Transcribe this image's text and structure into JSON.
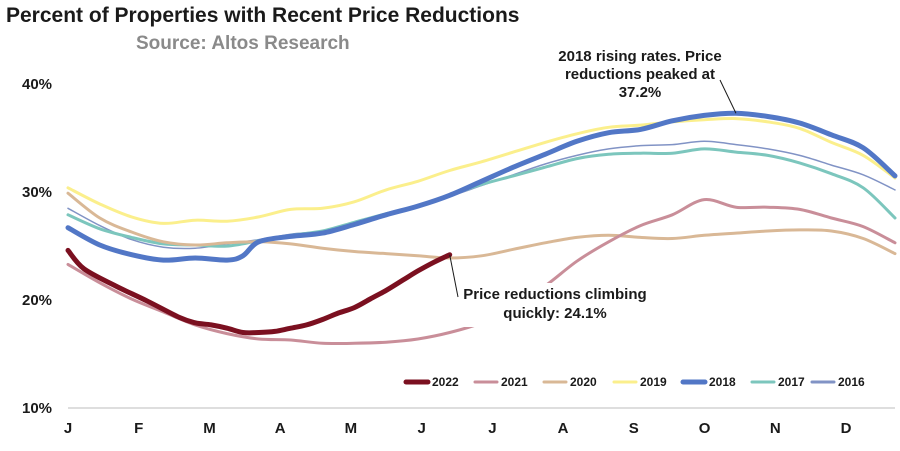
{
  "chart_data": {
    "type": "line",
    "title": "Percent of Properties with Recent Price Reductions",
    "subtitle": "Source: Altos Research",
    "xlabel": "",
    "ylabel": "",
    "ylim": [
      10,
      40
    ],
    "yticks": [
      "40%",
      "30%",
      "20%",
      "10%"
    ],
    "ytick_values": [
      40,
      30,
      20,
      10
    ],
    "categories": [
      "J",
      "F",
      "M",
      "A",
      "M",
      "J",
      "J",
      "A",
      "S",
      "O",
      "N",
      "D"
    ],
    "x_range": [
      1,
      53
    ],
    "legend_position": "bottom-right",
    "series": [
      {
        "name": "2022",
        "color": "#7b1020",
        "width": 5,
        "x": [
          1,
          2,
          4,
          6,
          8,
          9,
          10,
          11,
          12,
          13,
          14,
          15,
          16,
          17,
          18,
          19,
          20,
          21,
          22,
          23,
          24,
          25
        ],
        "y": [
          24.5,
          22.8,
          21.2,
          19.8,
          18.3,
          17.8,
          17.6,
          17.3,
          16.9,
          16.9,
          17.0,
          17.3,
          17.6,
          18.1,
          18.7,
          19.2,
          20.0,
          20.8,
          21.7,
          22.6,
          23.4,
          24.1
        ]
      },
      {
        "name": "2021",
        "color": "#c98e99",
        "width": 3,
        "x": [
          1,
          3,
          5,
          7,
          9,
          11,
          13,
          15,
          17,
          19,
          21,
          23,
          25,
          27,
          29,
          31,
          33,
          35,
          37,
          39,
          41,
          43,
          45,
          47,
          49,
          51,
          53
        ],
        "y": [
          23.2,
          21.5,
          20.0,
          18.8,
          17.6,
          16.8,
          16.3,
          16.2,
          15.9,
          15.9,
          16.0,
          16.3,
          16.9,
          17.8,
          19.3,
          21.2,
          23.5,
          25.3,
          26.8,
          27.8,
          29.2,
          28.5,
          28.5,
          28.3,
          27.5,
          26.7,
          25.2
        ]
      },
      {
        "name": "2020",
        "color": "#d9b896",
        "width": 3,
        "x": [
          1,
          3,
          5,
          7,
          9,
          11,
          13,
          15,
          17,
          19,
          21,
          23,
          25,
          27,
          29,
          31,
          33,
          35,
          37,
          39,
          41,
          43,
          45,
          47,
          49,
          51,
          53
        ],
        "y": [
          29.8,
          27.5,
          26.2,
          25.3,
          25.0,
          25.2,
          25.3,
          25.1,
          24.7,
          24.4,
          24.2,
          24.0,
          23.8,
          24.0,
          24.6,
          25.2,
          25.7,
          25.9,
          25.7,
          25.6,
          25.9,
          26.1,
          26.3,
          26.4,
          26.3,
          25.6,
          24.2
        ]
      },
      {
        "name": "2019",
        "color": "#fbef8c",
        "width": 3,
        "x": [
          1,
          3,
          5,
          7,
          9,
          11,
          13,
          15,
          17,
          19,
          21,
          23,
          25,
          27,
          29,
          31,
          33,
          35,
          37,
          39,
          41,
          43,
          45,
          47,
          49,
          51,
          53
        ],
        "y": [
          30.3,
          28.8,
          27.6,
          27.0,
          27.3,
          27.2,
          27.6,
          28.3,
          28.4,
          29.0,
          30.1,
          30.9,
          31.9,
          32.7,
          33.6,
          34.5,
          35.3,
          35.9,
          36.1,
          36.4,
          36.6,
          36.7,
          36.4,
          35.8,
          34.5,
          33.3,
          31.2
        ]
      },
      {
        "name": "2018",
        "color": "#5277c6",
        "width": 5,
        "x": [
          1,
          3,
          5,
          7,
          9,
          11,
          12,
          13,
          15,
          17,
          19,
          21,
          23,
          25,
          27,
          29,
          31,
          33,
          35,
          37,
          39,
          41,
          43,
          45,
          47,
          49,
          51,
          53
        ],
        "y": [
          26.6,
          25.0,
          24.1,
          23.6,
          23.8,
          23.6,
          24.0,
          25.3,
          25.8,
          26.1,
          26.9,
          27.8,
          28.6,
          29.6,
          30.9,
          32.2,
          33.4,
          34.6,
          35.4,
          35.7,
          36.5,
          37.0,
          37.2,
          36.9,
          36.3,
          35.2,
          34.0,
          31.4
        ]
      },
      {
        "name": "2017",
        "color": "#7cc6bd",
        "width": 3,
        "x": [
          1,
          3,
          5,
          7,
          9,
          11,
          13,
          15,
          17,
          19,
          21,
          23,
          25,
          27,
          29,
          31,
          33,
          35,
          37,
          39,
          41,
          43,
          45,
          47,
          49,
          51,
          53
        ],
        "y": [
          27.8,
          26.5,
          25.7,
          25.1,
          25.0,
          24.9,
          25.4,
          25.9,
          26.3,
          27.1,
          27.9,
          28.6,
          29.6,
          30.6,
          31.4,
          32.2,
          33.0,
          33.4,
          33.5,
          33.5,
          33.9,
          33.6,
          33.3,
          32.6,
          31.6,
          30.3,
          27.5
        ]
      },
      {
        "name": "2016",
        "color": "#8193c5",
        "width": 1.5,
        "x": [
          1,
          3,
          5,
          7,
          9,
          11,
          13,
          15,
          17,
          19,
          21,
          23,
          25,
          27,
          29,
          31,
          33,
          35,
          37,
          39,
          41,
          43,
          45,
          47,
          49,
          51,
          53
        ],
        "y": [
          28.4,
          26.8,
          25.5,
          24.8,
          24.7,
          25.1,
          25.5,
          26.0,
          26.3,
          27.0,
          27.9,
          28.6,
          29.5,
          30.5,
          31.5,
          32.5,
          33.3,
          33.9,
          34.2,
          34.3,
          34.6,
          34.3,
          33.9,
          33.3,
          32.4,
          31.5,
          30.1
        ]
      }
    ],
    "annotations": [
      {
        "lines": [
          "2018 rising rates. Price",
          "reductions peaked at",
          "37.2%"
        ],
        "target_x": 43,
        "target_y": 37.2
      },
      {
        "lines": [
          "Price reductions climbing",
          "quickly: 24.1%"
        ],
        "target_x": 25,
        "target_y": 24.1
      }
    ]
  }
}
